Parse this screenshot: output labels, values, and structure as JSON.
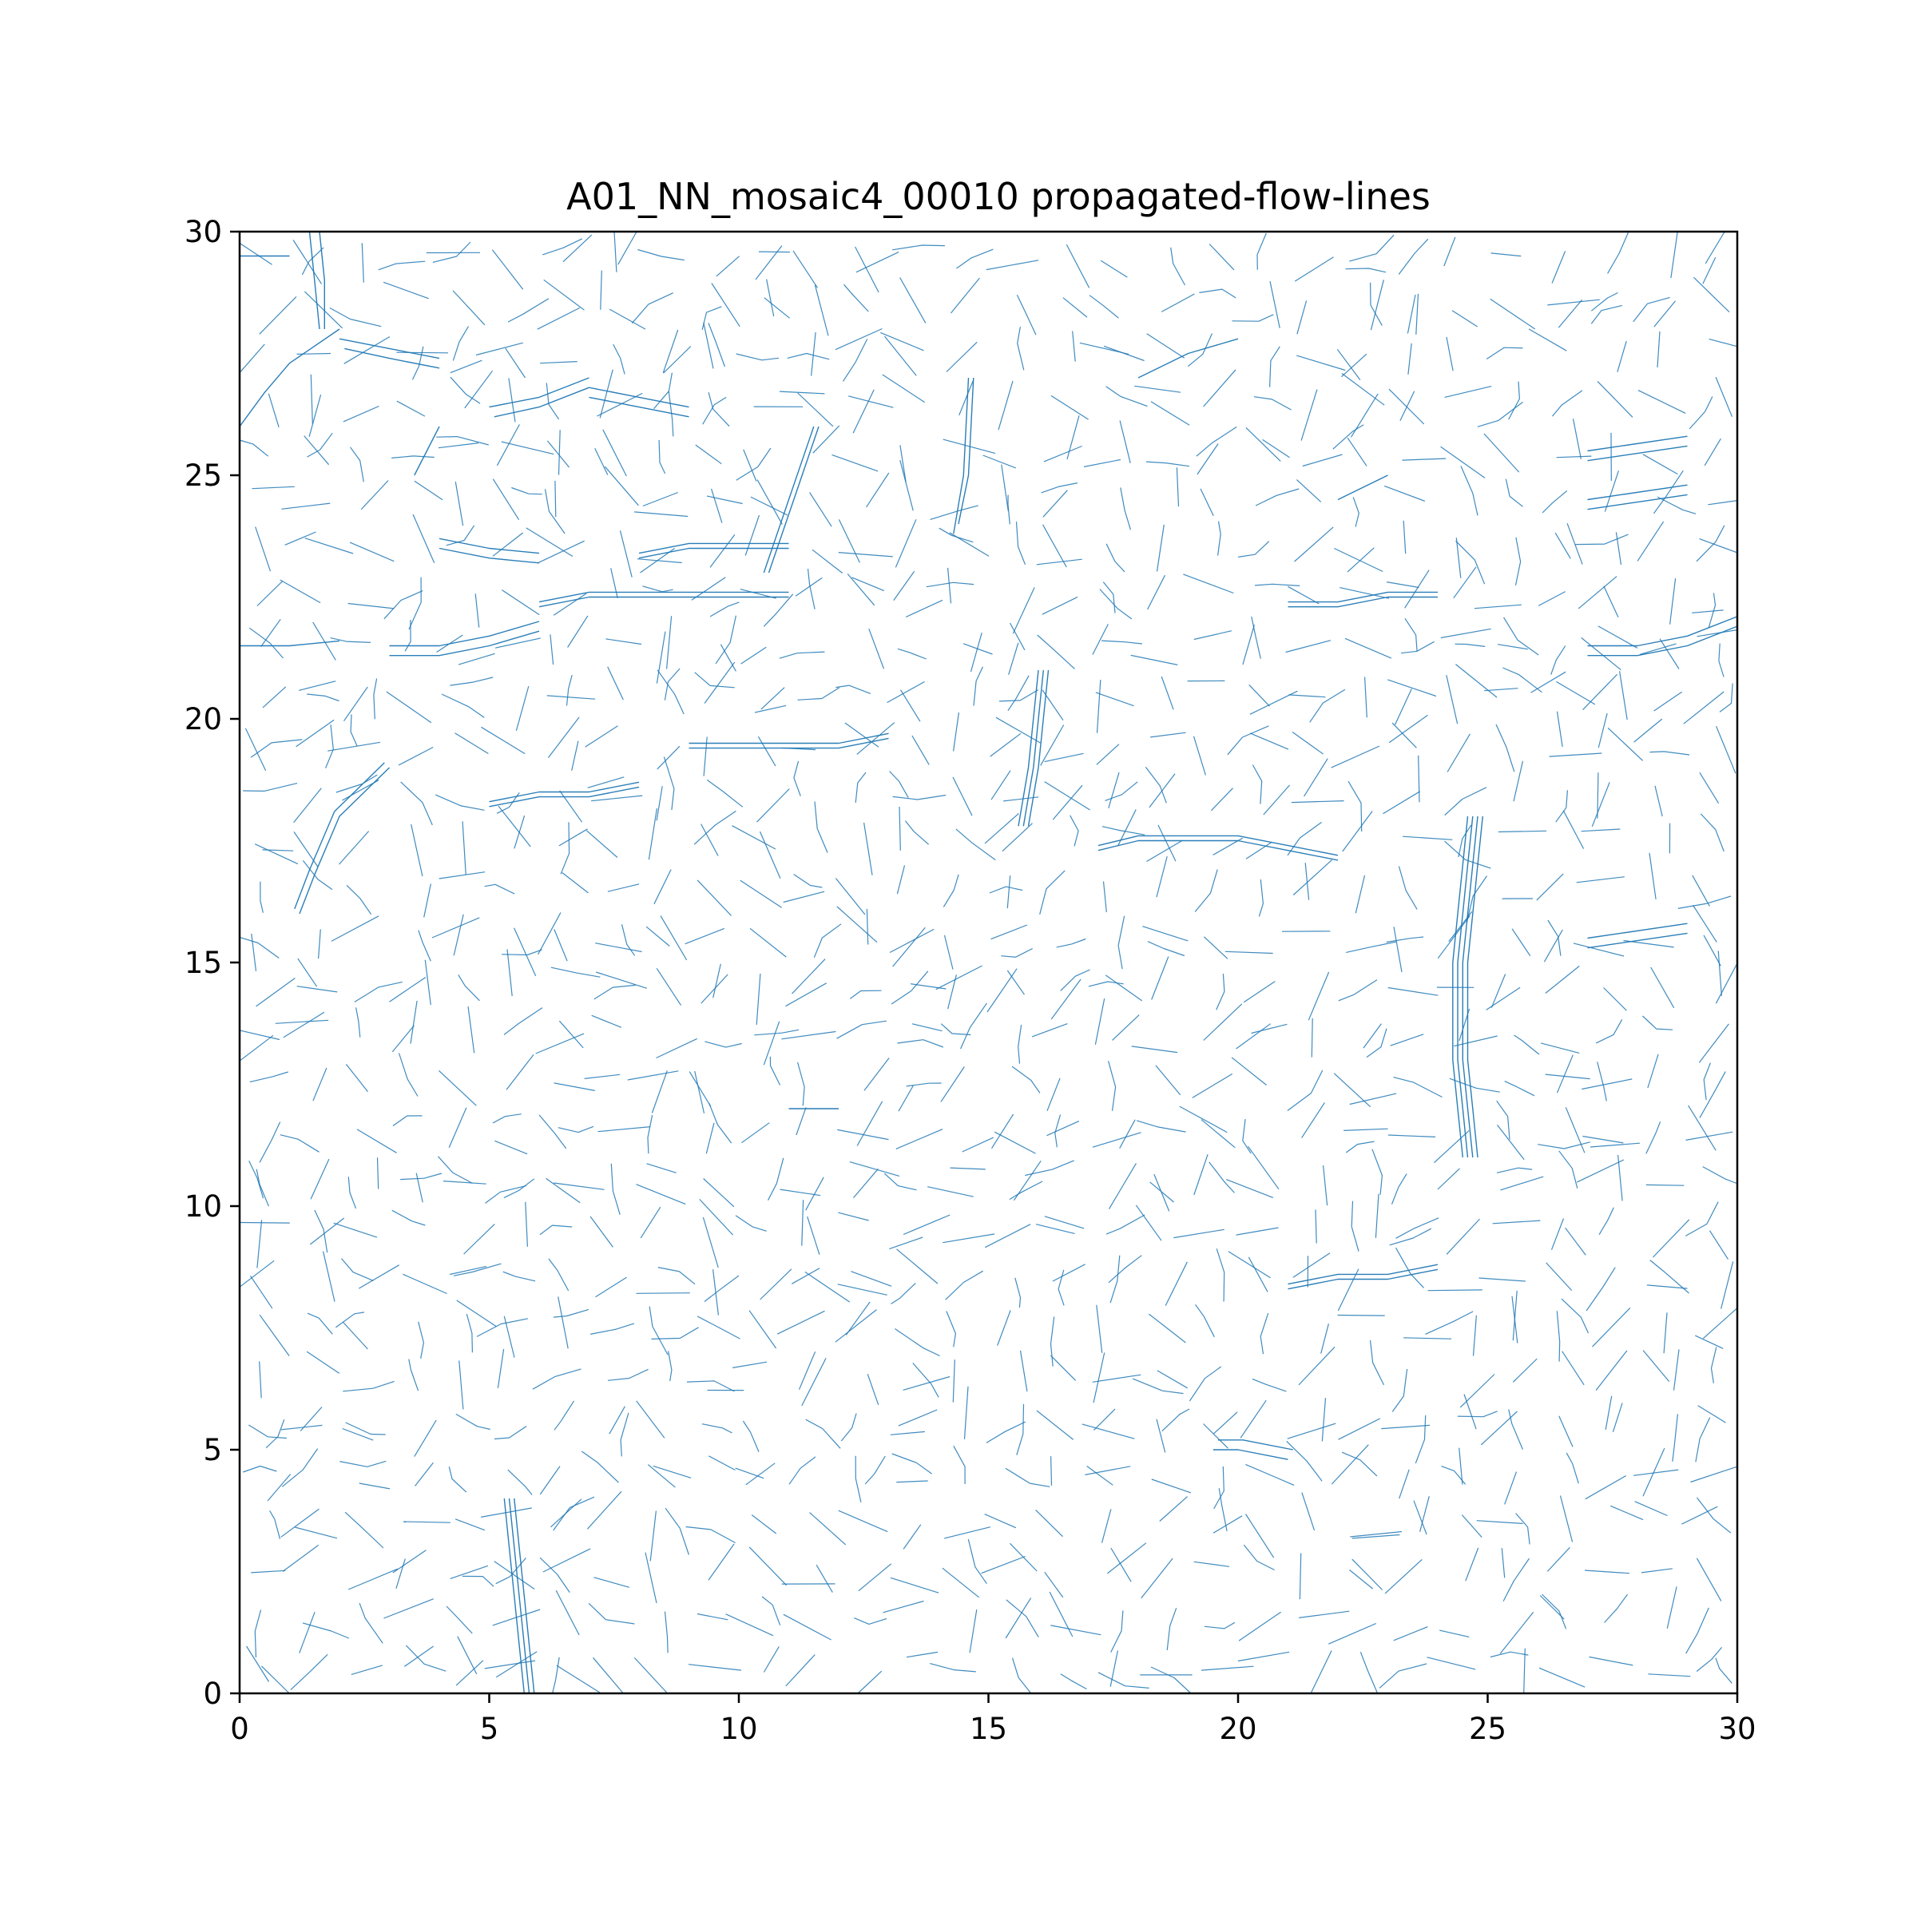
{
  "chart_data": {
    "type": "line",
    "title": "A01_NN_mosaic4_00010 propagated-flow-lines",
    "xlabel": "",
    "ylabel": "",
    "xlim": [
      0,
      30
    ],
    "ylim": [
      0,
      30
    ],
    "xticks": [
      0,
      5,
      10,
      15,
      20,
      25,
      30
    ],
    "yticks": [
      0,
      5,
      10,
      15,
      20,
      25,
      30
    ],
    "xtick_labels": [
      "0",
      "5",
      "10",
      "15",
      "20",
      "25",
      "30"
    ],
    "ytick_labels": [
      "0",
      "5",
      "10",
      "15",
      "20",
      "25",
      "30"
    ],
    "grid": false,
    "legend": "none",
    "line_color": "#1f77b4",
    "grid_spacing": 1,
    "series": [
      {
        "segments": [
          [
            [
              0.0,
              29.5
            ],
            [
              1.0,
              29.5
            ]
          ],
          [
            [
              1.4,
              30.0
            ],
            [
              1.5,
              29.0
            ],
            [
              1.6,
              28.0
            ]
          ],
          [
            [
              1.6,
              30.0
            ],
            [
              1.7,
              29.0
            ],
            [
              1.7,
              28.0
            ]
          ],
          [
            [
              2.0,
              27.8
            ],
            [
              3.0,
              27.6
            ],
            [
              4.0,
              27.4
            ]
          ],
          [
            [
              2.1,
              27.6
            ],
            [
              3.0,
              27.4
            ],
            [
              4.0,
              27.2
            ]
          ],
          [
            [
              5.0,
              26.4
            ],
            [
              6.0,
              26.6
            ],
            [
              7.0,
              27.0
            ]
          ],
          [
            [
              5.1,
              26.2
            ],
            [
              6.0,
              26.4
            ],
            [
              7.0,
              26.8
            ]
          ],
          [
            [
              7.0,
              26.8
            ],
            [
              8.0,
              26.6
            ],
            [
              9.0,
              26.4
            ]
          ],
          [
            [
              7.0,
              26.6
            ],
            [
              8.0,
              26.4
            ],
            [
              9.0,
              26.2
            ]
          ],
          [
            [
              4.0,
              23.7
            ],
            [
              5.0,
              23.5
            ],
            [
              6.0,
              23.4
            ]
          ],
          [
            [
              4.0,
              23.5
            ],
            [
              5.0,
              23.3
            ],
            [
              6.0,
              23.2
            ]
          ],
          [
            [
              8.0,
              23.4
            ],
            [
              9.0,
              23.6
            ],
            [
              11.0,
              23.6
            ]
          ],
          [
            [
              8.0,
              23.3
            ],
            [
              9.0,
              23.5
            ],
            [
              11.0,
              23.5
            ]
          ],
          [
            [
              6.0,
              22.3
            ],
            [
              7.0,
              22.5
            ],
            [
              9.0,
              22.5
            ],
            [
              11.0,
              22.5
            ]
          ],
          [
            [
              6.0,
              22.4
            ],
            [
              7.0,
              22.6
            ],
            [
              9.0,
              22.6
            ],
            [
              11.0,
              22.6
            ]
          ],
          [
            [
              0.0,
              21.5
            ],
            [
              1.0,
              21.5
            ],
            [
              2.0,
              21.6
            ]
          ],
          [
            [
              3.0,
              21.5
            ],
            [
              4.0,
              21.5
            ],
            [
              5.0,
              21.7
            ],
            [
              6.0,
              22.0
            ]
          ],
          [
            [
              3.0,
              21.3
            ],
            [
              4.0,
              21.3
            ],
            [
              5.0,
              21.5
            ],
            [
              6.0,
              21.8
            ]
          ],
          [
            [
              9.0,
              19.5
            ],
            [
              10.0,
              19.5
            ],
            [
              12.0,
              19.5
            ],
            [
              13.0,
              19.7
            ]
          ],
          [
            [
              9.0,
              19.4
            ],
            [
              10.0,
              19.4
            ],
            [
              12.0,
              19.4
            ],
            [
              13.0,
              19.6
            ]
          ],
          [
            [
              5.0,
              18.3
            ],
            [
              6.0,
              18.5
            ],
            [
              7.0,
              18.5
            ],
            [
              8.0,
              18.7
            ]
          ],
          [
            [
              5.0,
              18.2
            ],
            [
              6.0,
              18.4
            ],
            [
              7.0,
              18.4
            ],
            [
              8.0,
              18.6
            ]
          ],
          [
            [
              1.2,
              16.0
            ],
            [
              1.5,
              16.8
            ],
            [
              2.0,
              18.0
            ],
            [
              3.0,
              19.0
            ]
          ],
          [
            [
              1.1,
              16.1
            ],
            [
              1.4,
              16.9
            ],
            [
              1.9,
              18.1
            ],
            [
              2.9,
              19.1
            ]
          ],
          [
            [
              17.2,
              17.4
            ],
            [
              18.0,
              17.6
            ],
            [
              20.0,
              17.6
            ],
            [
              21.0,
              17.4
            ],
            [
              22.0,
              17.2
            ]
          ],
          [
            [
              17.2,
              17.3
            ],
            [
              18.0,
              17.5
            ],
            [
              20.0,
              17.5
            ],
            [
              21.0,
              17.3
            ],
            [
              22.0,
              17.1
            ]
          ],
          [
            [
              21.0,
              22.4
            ],
            [
              22.0,
              22.4
            ],
            [
              23.0,
              22.6
            ],
            [
              24.0,
              22.6
            ]
          ],
          [
            [
              21.0,
              22.3
            ],
            [
              22.0,
              22.3
            ],
            [
              23.0,
              22.5
            ],
            [
              24.0,
              22.5
            ]
          ],
          [
            [
              21.0,
              8.4
            ],
            [
              22.0,
              8.6
            ],
            [
              23.0,
              8.6
            ],
            [
              24.0,
              8.8
            ]
          ],
          [
            [
              21.0,
              8.3
            ],
            [
              22.0,
              8.5
            ],
            [
              23.0,
              8.5
            ],
            [
              24.0,
              8.7
            ]
          ],
          [
            [
              27.0,
              21.5
            ],
            [
              28.0,
              21.5
            ],
            [
              29.0,
              21.7
            ],
            [
              30.0,
              22.1
            ]
          ],
          [
            [
              27.0,
              21.3
            ],
            [
              28.0,
              21.3
            ],
            [
              29.0,
              21.5
            ],
            [
              30.0,
              21.9
            ]
          ],
          [
            [
              27.0,
              25.5
            ],
            [
              29.0,
              25.8
            ]
          ],
          [
            [
              27.0,
              25.3
            ],
            [
              29.0,
              25.6
            ]
          ],
          [
            [
              27.0,
              24.5
            ],
            [
              29.0,
              24.8
            ]
          ],
          [
            [
              27.0,
              24.3
            ],
            [
              29.0,
              24.6
            ]
          ],
          [
            [
              27.0,
              15.5
            ],
            [
              29.0,
              15.8
            ]
          ],
          [
            [
              27.0,
              15.3
            ],
            [
              29.0,
              15.6
            ]
          ],
          [
            [
              24.5,
              11.0
            ],
            [
              24.4,
              12.0
            ],
            [
              24.3,
              13.0
            ],
            [
              24.3,
              15.0
            ],
            [
              24.4,
              16.0
            ],
            [
              24.5,
              17.0
            ],
            [
              24.6,
              18.0
            ]
          ],
          [
            [
              24.6,
              11.0
            ],
            [
              24.5,
              12.0
            ],
            [
              24.4,
              13.0
            ],
            [
              24.4,
              15.0
            ],
            [
              24.5,
              16.0
            ],
            [
              24.6,
              17.0
            ],
            [
              24.7,
              18.0
            ]
          ],
          [
            [
              24.7,
              11.0
            ],
            [
              24.6,
              12.0
            ],
            [
              24.5,
              13.0
            ],
            [
              24.5,
              15.0
            ],
            [
              24.6,
              16.0
            ],
            [
              24.7,
              17.0
            ],
            [
              24.8,
              18.0
            ]
          ],
          [
            [
              24.8,
              11.0
            ],
            [
              24.7,
              12.0
            ],
            [
              24.6,
              13.0
            ],
            [
              24.6,
              15.0
            ],
            [
              24.7,
              16.0
            ],
            [
              24.8,
              17.0
            ],
            [
              24.9,
              18.0
            ]
          ],
          [
            [
              5.3,
              4.0
            ],
            [
              5.4,
              3.0
            ],
            [
              5.5,
              2.0
            ],
            [
              5.6,
              1.0
            ],
            [
              5.7,
              0.0
            ]
          ],
          [
            [
              5.4,
              4.0
            ],
            [
              5.5,
              3.0
            ],
            [
              5.6,
              2.0
            ],
            [
              5.7,
              1.0
            ],
            [
              5.8,
              0.0
            ]
          ],
          [
            [
              5.5,
              4.0
            ],
            [
              5.6,
              3.0
            ],
            [
              5.7,
              2.0
            ],
            [
              5.8,
              1.0
            ],
            [
              5.9,
              0.0
            ]
          ],
          [
            [
              14.3,
              23.8
            ],
            [
              14.5,
              25.0
            ],
            [
              14.6,
              27.0
            ]
          ],
          [
            [
              14.4,
              24.0
            ],
            [
              14.6,
              25.0
            ],
            [
              14.7,
              27.0
            ]
          ],
          [
            [
              15.6,
              17.8
            ],
            [
              15.8,
              19.0
            ],
            [
              16.0,
              21.0
            ]
          ],
          [
            [
              15.7,
              17.8
            ],
            [
              15.9,
              19.0
            ],
            [
              16.1,
              21.0
            ]
          ],
          [
            [
              15.8,
              17.8
            ],
            [
              16.0,
              19.0
            ],
            [
              16.2,
              21.0
            ]
          ],
          [
            [
              10.5,
              23.0
            ],
            [
              11.0,
              24.5
            ],
            [
              11.5,
              26.0
            ]
          ],
          [
            [
              10.6,
              23.0
            ],
            [
              11.1,
              24.5
            ],
            [
              11.6,
              26.0
            ]
          ],
          [
            [
              0.0,
              26.0
            ],
            [
              0.5,
              26.7
            ],
            [
              1.0,
              27.3
            ],
            [
              2.0,
              28.0
            ]
          ],
          [
            [
              3.5,
              25.0
            ],
            [
              4.0,
              26.0
            ]
          ],
          [
            [
              18.0,
              27.0
            ],
            [
              19.0,
              27.5
            ],
            [
              20.0,
              27.8
            ]
          ],
          [
            [
              22.0,
              24.5
            ],
            [
              23.0,
              25.0
            ]
          ],
          [
            [
              11.0,
              12.0
            ],
            [
              12.0,
              12.0
            ]
          ],
          [
            [
              19.5,
              5.0
            ],
            [
              20.0,
              5.0
            ],
            [
              21.0,
              4.8
            ]
          ],
          [
            [
              19.6,
              5.2
            ],
            [
              20.1,
              5.2
            ],
            [
              21.1,
              5.0
            ]
          ]
        ]
      }
    ]
  }
}
